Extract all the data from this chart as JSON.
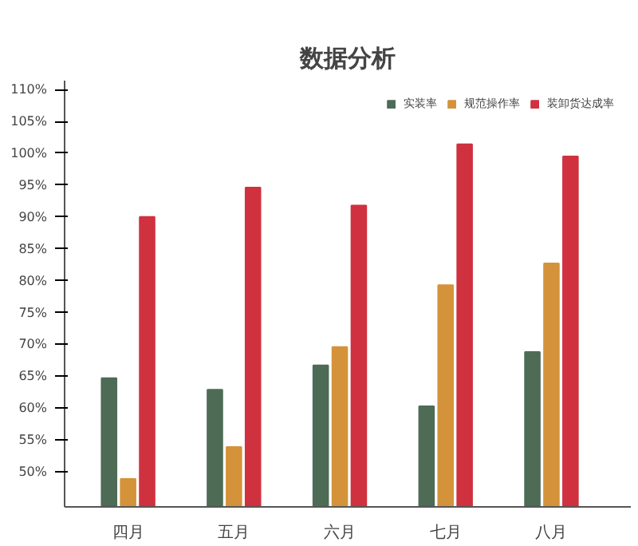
{
  "chart_data": {
    "type": "bar",
    "title": "数据分析",
    "categories": [
      "四月",
      "五月",
      "六月",
      "七月",
      "八月"
    ],
    "series": [
      {
        "name": "实装率",
        "color": "#4e6b56",
        "values": [
          64.7,
          62.9,
          66.7,
          60.3,
          68.8
        ]
      },
      {
        "name": "规范操作率",
        "color": "#d4933a",
        "values": [
          48.9,
          53.9,
          69.6,
          79.3,
          82.7
        ]
      },
      {
        "name": "装卸货达成率",
        "color": "#d0313f",
        "values": [
          90.0,
          94.6,
          91.8,
          101.4,
          99.5
        ]
      }
    ],
    "ylim": [
      44.5,
      111.4
    ],
    "yticks": [
      {
        "value": 50,
        "label": "50%"
      },
      {
        "value": 55,
        "label": "55%"
      },
      {
        "value": 60,
        "label": "60%"
      },
      {
        "value": 65,
        "label": "65%"
      },
      {
        "value": 70,
        "label": "70%"
      },
      {
        "value": 75,
        "label": "75%"
      },
      {
        "value": 80,
        "label": "80%"
      },
      {
        "value": 85,
        "label": "85%"
      },
      {
        "value": 90,
        "label": "90%"
      },
      {
        "value": 95,
        "label": "95%"
      },
      {
        "value": 100,
        "label": "100%"
      },
      {
        "value": 105,
        "label": "105%"
      },
      {
        "value": 110,
        "label": "110%"
      }
    ],
    "grid": false,
    "legend": "top right"
  }
}
